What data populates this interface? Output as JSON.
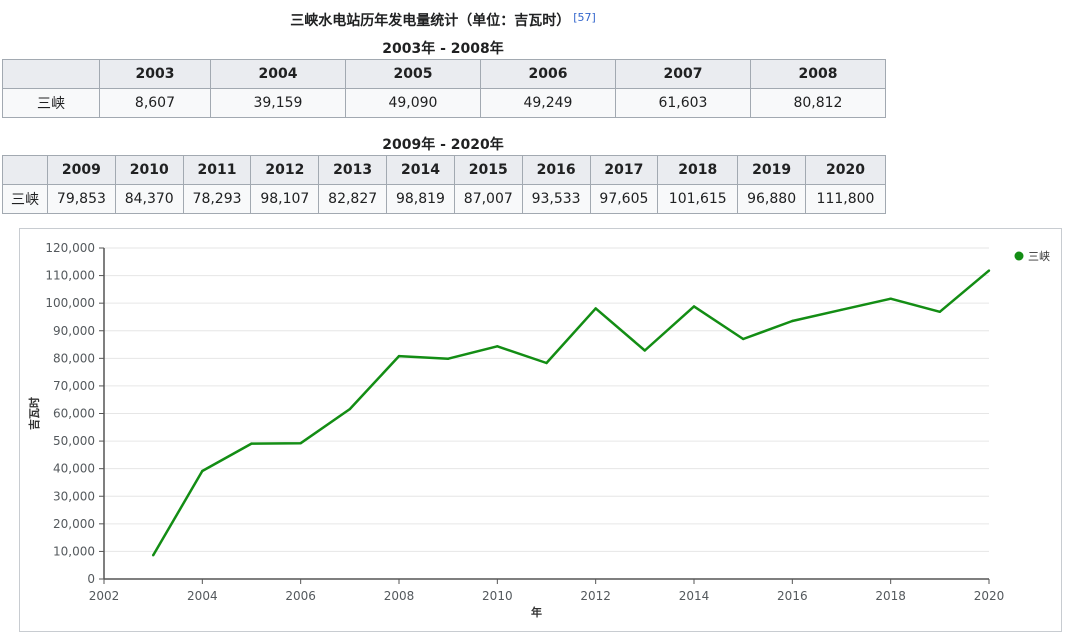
{
  "caption": {
    "title": "三峡水电站历年发电量统计（单位：吉瓦时）",
    "ref": "[57]",
    "range1": "2003年 - 2008年",
    "range2": "2009年 - 2020年"
  },
  "table1": {
    "row_label": "三峡",
    "years": [
      "2003",
      "2004",
      "2005",
      "2006",
      "2007",
      "2008"
    ],
    "values": [
      "8,607",
      "39,159",
      "49,090",
      "49,249",
      "61,603",
      "80,812"
    ]
  },
  "table2": {
    "row_label": "三峡",
    "years": [
      "2009",
      "2010",
      "2011",
      "2012",
      "2013",
      "2014",
      "2015",
      "2016",
      "2017",
      "2018",
      "2019",
      "2020"
    ],
    "values": [
      "79,853",
      "84,370",
      "78,293",
      "98,107",
      "82,827",
      "98,819",
      "87,007",
      "93,533",
      "97,605",
      "101,615",
      "96,880",
      "111,800"
    ]
  },
  "chart_data": {
    "type": "line",
    "title": "",
    "xlabel": "年",
    "ylabel": "吉瓦时",
    "xlim": [
      2002,
      2020
    ],
    "ylim": [
      0,
      120000
    ],
    "xticks": [
      2002,
      2004,
      2006,
      2008,
      2010,
      2012,
      2014,
      2016,
      2018,
      2020
    ],
    "yticks": [
      0,
      10000,
      20000,
      30000,
      40000,
      50000,
      60000,
      70000,
      80000,
      90000,
      100000,
      110000,
      120000
    ],
    "grid": true,
    "legend": "top-right",
    "series": [
      {
        "name": "三峡",
        "color": "#138d14",
        "x": [
          2003,
          2004,
          2005,
          2006,
          2007,
          2008,
          2009,
          2010,
          2011,
          2012,
          2013,
          2014,
          2015,
          2016,
          2017,
          2018,
          2019,
          2020
        ],
        "y": [
          8607,
          39159,
          49090,
          49249,
          61603,
          80812,
          79853,
          84370,
          78293,
          98107,
          82827,
          98819,
          87007,
          93533,
          97605,
          101615,
          96880,
          111800
        ]
      }
    ]
  }
}
